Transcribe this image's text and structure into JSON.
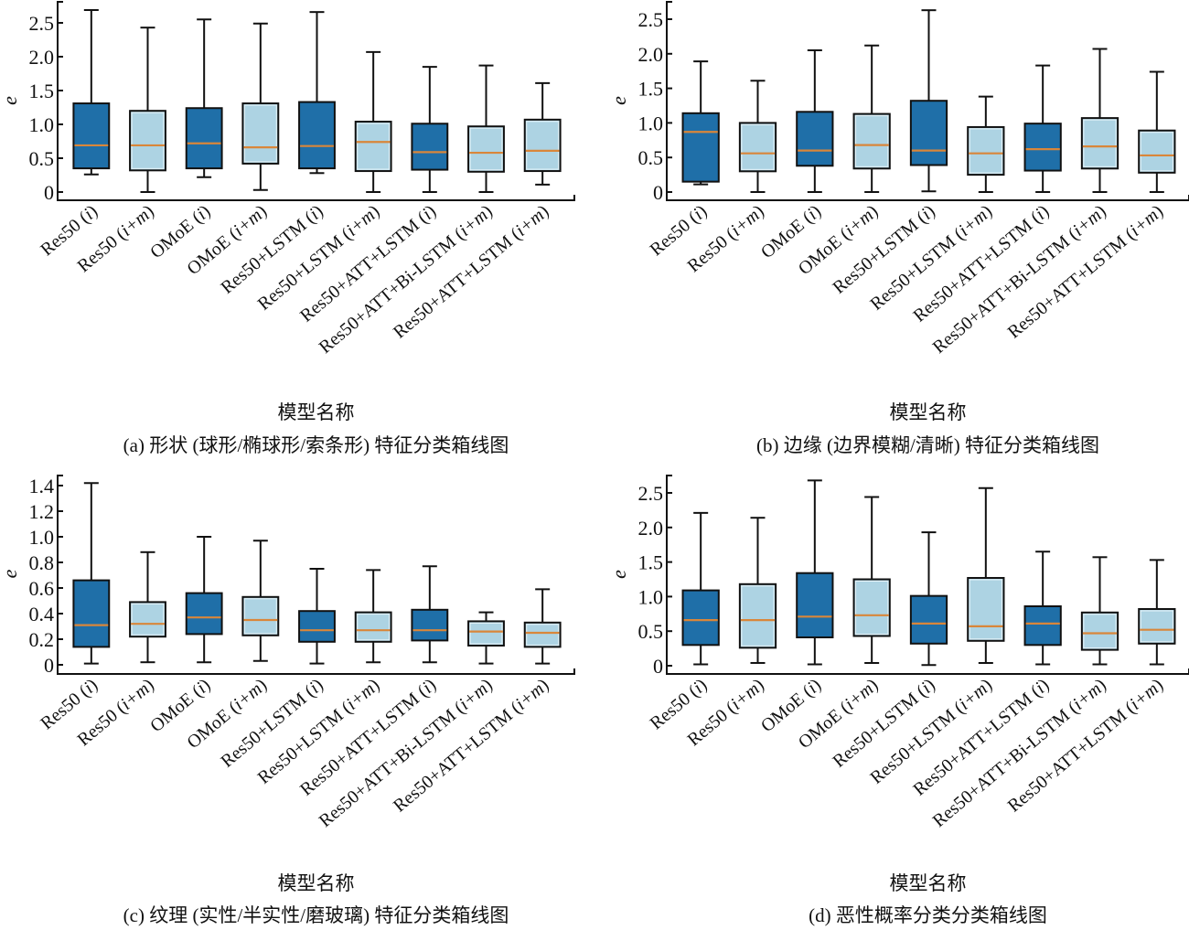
{
  "figure": {
    "colors": {
      "image_only": "#1f6fa8",
      "image_plus_meta": "#add3e3",
      "median": "#d9863a",
      "whisker": "#111111"
    }
  },
  "chart_data": [
    {
      "id": "a",
      "type": "box",
      "caption": "(a)  形状 (球形/椭球形/索条形) 特征分类箱线图",
      "xlabel": "模型名称",
      "ylabel": "e",
      "ylim": [
        0,
        2.75
      ],
      "yticks": [
        0,
        0.5,
        1.0,
        1.5,
        2.0,
        2.5
      ],
      "ytick_labels": [
        "0",
        "0.5",
        "1.0",
        "1.5",
        "2.0",
        "2.5"
      ],
      "grid": false,
      "categories": [
        {
          "name": "Res50 (",
          "var": "i",
          "suffix": ")"
        },
        {
          "name": "Res50 (",
          "var": "i+m",
          "suffix": ")"
        },
        {
          "name": "OMoE (",
          "var": "i",
          "suffix": ")"
        },
        {
          "name": "OMoE (",
          "var": "i+m",
          "suffix": ")"
        },
        {
          "name": "Res50+LSTM (",
          "var": "i",
          "suffix": ")"
        },
        {
          "name": "Res50+LSTM (",
          "var": "i+m",
          "suffix": ")"
        },
        {
          "name": "Res50+ATT+LSTM (",
          "var": "i",
          "suffix": ")"
        },
        {
          "name": "Res50+ATT+Bi-LSTM (",
          "var": "i+m",
          "suffix": ")"
        },
        {
          "name": "Res50+ATT+LSTM (",
          "var": "i+m",
          "suffix": ")"
        }
      ],
      "series_type": [
        "i",
        "i+m",
        "i",
        "i+m",
        "i",
        "i+m",
        "i",
        "i+m",
        "i+m"
      ],
      "boxes": [
        {
          "whislo": 0.26,
          "q1": 0.35,
          "med": 0.69,
          "q3": 1.31,
          "whishi": 2.69
        },
        {
          "whislo": 0.0,
          "q1": 0.32,
          "med": 0.69,
          "q3": 1.2,
          "whishi": 2.43
        },
        {
          "whislo": 0.22,
          "q1": 0.35,
          "med": 0.72,
          "q3": 1.24,
          "whishi": 2.55
        },
        {
          "whislo": 0.03,
          "q1": 0.42,
          "med": 0.66,
          "q3": 1.31,
          "whishi": 2.49
        },
        {
          "whislo": 0.28,
          "q1": 0.35,
          "med": 0.68,
          "q3": 1.33,
          "whishi": 2.66
        },
        {
          "whislo": 0.0,
          "q1": 0.31,
          "med": 0.74,
          "q3": 1.04,
          "whishi": 2.07
        },
        {
          "whislo": 0.0,
          "q1": 0.33,
          "med": 0.59,
          "q3": 1.01,
          "whishi": 1.85
        },
        {
          "whislo": 0.0,
          "q1": 0.3,
          "med": 0.58,
          "q3": 0.97,
          "whishi": 1.87
        },
        {
          "whislo": 0.11,
          "q1": 0.31,
          "med": 0.61,
          "q3": 1.07,
          "whishi": 1.61
        }
      ]
    },
    {
      "id": "b",
      "type": "box",
      "caption": "(b)  边缘 (边界模糊/清晰) 特征分类箱线图",
      "xlabel": "模型名称",
      "ylabel": "e",
      "ylim": [
        0,
        2.75
      ],
      "yticks": [
        0,
        0.5,
        1.0,
        1.5,
        2.0,
        2.5
      ],
      "ytick_labels": [
        "0",
        "0.5",
        "1.0",
        "1.5",
        "2.0",
        "2.5"
      ],
      "grid": false,
      "categories": [
        {
          "name": "Res50 (",
          "var": "i",
          "suffix": ")"
        },
        {
          "name": "Res50 (",
          "var": "i+m",
          "suffix": ")"
        },
        {
          "name": "OMoE (",
          "var": "i",
          "suffix": ")"
        },
        {
          "name": "OMoE (",
          "var": "i+m",
          "suffix": ")"
        },
        {
          "name": "Res50+LSTM (",
          "var": "i",
          "suffix": ")"
        },
        {
          "name": "Res50+LSTM (",
          "var": "i+m",
          "suffix": ")"
        },
        {
          "name": "Res50+ATT+LSTM (",
          "var": "i",
          "suffix": ")"
        },
        {
          "name": "Res50+ATT+Bi-LSTM (",
          "var": "i+m",
          "suffix": ")"
        },
        {
          "name": "Res50+ATT+LSTM (",
          "var": "i+m",
          "suffix": ")"
        }
      ],
      "series_type": [
        "i",
        "i+m",
        "i",
        "i+m",
        "i",
        "i+m",
        "i",
        "i+m",
        "i+m"
      ],
      "boxes": [
        {
          "whislo": 0.11,
          "q1": 0.15,
          "med": 0.87,
          "q3": 1.14,
          "whishi": 1.89
        },
        {
          "whislo": 0.0,
          "q1": 0.3,
          "med": 0.56,
          "q3": 1.0,
          "whishi": 1.61
        },
        {
          "whislo": 0.0,
          "q1": 0.38,
          "med": 0.6,
          "q3": 1.16,
          "whishi": 2.05
        },
        {
          "whislo": 0.0,
          "q1": 0.34,
          "med": 0.68,
          "q3": 1.13,
          "whishi": 2.12
        },
        {
          "whislo": 0.01,
          "q1": 0.39,
          "med": 0.6,
          "q3": 1.32,
          "whishi": 2.63
        },
        {
          "whislo": 0.0,
          "q1": 0.25,
          "med": 0.56,
          "q3": 0.94,
          "whishi": 1.38
        },
        {
          "whislo": 0.0,
          "q1": 0.31,
          "med": 0.62,
          "q3": 0.99,
          "whishi": 1.83
        },
        {
          "whislo": 0.0,
          "q1": 0.34,
          "med": 0.66,
          "q3": 1.07,
          "whishi": 2.07
        },
        {
          "whislo": 0.0,
          "q1": 0.28,
          "med": 0.53,
          "q3": 0.89,
          "whishi": 1.74
        }
      ]
    },
    {
      "id": "c",
      "type": "box",
      "caption": "(c)  纹理 (实性/半实性/磨玻璃) 特征分类箱线图",
      "xlabel": "模型名称",
      "ylabel": "e",
      "ylim": [
        0,
        1.47
      ],
      "yticks": [
        0,
        0.2,
        0.4,
        0.6,
        0.8,
        1.0,
        1.2,
        1.4
      ],
      "ytick_labels": [
        "0",
        "0.2",
        "0.4",
        "0.6",
        "0.8",
        "1.0",
        "1.2",
        "1.4"
      ],
      "grid": false,
      "categories": [
        {
          "name": "Res50 (",
          "var": "i",
          "suffix": ")"
        },
        {
          "name": "Res50 (",
          "var": "i+m",
          "suffix": ")"
        },
        {
          "name": "OMoE (",
          "var": "i",
          "suffix": ")"
        },
        {
          "name": "OMoE (",
          "var": "i+m",
          "suffix": ")"
        },
        {
          "name": "Res50+LSTM (",
          "var": "i",
          "suffix": ")"
        },
        {
          "name": "Res50+LSTM (",
          "var": "i+m",
          "suffix": ")"
        },
        {
          "name": "Res50+ATT+LSTM (",
          "var": "i",
          "suffix": ")"
        },
        {
          "name": "Res50+ATT+Bi-LSTM (",
          "var": "i+m",
          "suffix": ")"
        },
        {
          "name": "Res50+ATT+LSTM (",
          "var": "i+m",
          "suffix": ")"
        }
      ],
      "series_type": [
        "i",
        "i+m",
        "i",
        "i+m",
        "i",
        "i+m",
        "i",
        "i+m",
        "i+m"
      ],
      "boxes": [
        {
          "whislo": 0.01,
          "q1": 0.14,
          "med": 0.31,
          "q3": 0.66,
          "whishi": 1.42
        },
        {
          "whislo": 0.02,
          "q1": 0.22,
          "med": 0.32,
          "q3": 0.49,
          "whishi": 0.88
        },
        {
          "whislo": 0.02,
          "q1": 0.24,
          "med": 0.37,
          "q3": 0.56,
          "whishi": 1.0
        },
        {
          "whislo": 0.03,
          "q1": 0.23,
          "med": 0.35,
          "q3": 0.53,
          "whishi": 0.97
        },
        {
          "whislo": 0.01,
          "q1": 0.18,
          "med": 0.27,
          "q3": 0.42,
          "whishi": 0.75
        },
        {
          "whislo": 0.02,
          "q1": 0.18,
          "med": 0.27,
          "q3": 0.41,
          "whishi": 0.74
        },
        {
          "whislo": 0.02,
          "q1": 0.19,
          "med": 0.27,
          "q3": 0.43,
          "whishi": 0.77
        },
        {
          "whislo": 0.01,
          "q1": 0.15,
          "med": 0.26,
          "q3": 0.34,
          "whishi": 0.41
        },
        {
          "whislo": 0.01,
          "q1": 0.14,
          "med": 0.25,
          "q3": 0.33,
          "whishi": 0.59
        }
      ]
    },
    {
      "id": "d",
      "type": "box",
      "caption": "(d)  恶性概率分类分类箱线图",
      "xlabel": "模型名称",
      "ylabel": "e",
      "ylim": [
        0,
        2.8
      ],
      "yticks": [
        0,
        0.5,
        1.0,
        1.5,
        2.0,
        2.5
      ],
      "ytick_labels": [
        "0",
        "0.5",
        "1.0",
        "1.5",
        "2.0",
        "2.5"
      ],
      "grid": false,
      "categories": [
        {
          "name": "Res50 (",
          "var": "i",
          "suffix": ")"
        },
        {
          "name": "Res50 (",
          "var": "i+m",
          "suffix": ")"
        },
        {
          "name": "OMoE (",
          "var": "i",
          "suffix": ")"
        },
        {
          "name": "OMoE (",
          "var": "i+m",
          "suffix": ")"
        },
        {
          "name": "Res50+LSTM (",
          "var": "i",
          "suffix": ")"
        },
        {
          "name": "Res50+LSTM (",
          "var": "i+m",
          "suffix": ")"
        },
        {
          "name": "Res50+ATT+LSTM (",
          "var": "i",
          "suffix": ")"
        },
        {
          "name": "Res50+ATT+Bi-LSTM (",
          "var": "i+m",
          "suffix": ")"
        },
        {
          "name": "Res50+ATT+LSTM (",
          "var": "i+m",
          "suffix": ")"
        }
      ],
      "series_type": [
        "i",
        "i+m",
        "i",
        "i+m",
        "i",
        "i+m",
        "i",
        "i+m",
        "i+m"
      ],
      "boxes": [
        {
          "whislo": 0.02,
          "q1": 0.3,
          "med": 0.66,
          "q3": 1.09,
          "whishi": 2.21
        },
        {
          "whislo": 0.04,
          "q1": 0.26,
          "med": 0.66,
          "q3": 1.18,
          "whishi": 2.14
        },
        {
          "whislo": 0.02,
          "q1": 0.41,
          "med": 0.71,
          "q3": 1.34,
          "whishi": 2.68
        },
        {
          "whislo": 0.04,
          "q1": 0.43,
          "med": 0.73,
          "q3": 1.25,
          "whishi": 2.44
        },
        {
          "whislo": 0.01,
          "q1": 0.32,
          "med": 0.61,
          "q3": 1.01,
          "whishi": 1.93
        },
        {
          "whislo": 0.04,
          "q1": 0.36,
          "med": 0.57,
          "q3": 1.27,
          "whishi": 2.57
        },
        {
          "whislo": 0.02,
          "q1": 0.3,
          "med": 0.61,
          "q3": 0.86,
          "whishi": 1.65
        },
        {
          "whislo": 0.02,
          "q1": 0.23,
          "med": 0.47,
          "q3": 0.77,
          "whishi": 1.57
        },
        {
          "whislo": 0.02,
          "q1": 0.32,
          "med": 0.52,
          "q3": 0.82,
          "whishi": 1.53
        }
      ]
    }
  ]
}
